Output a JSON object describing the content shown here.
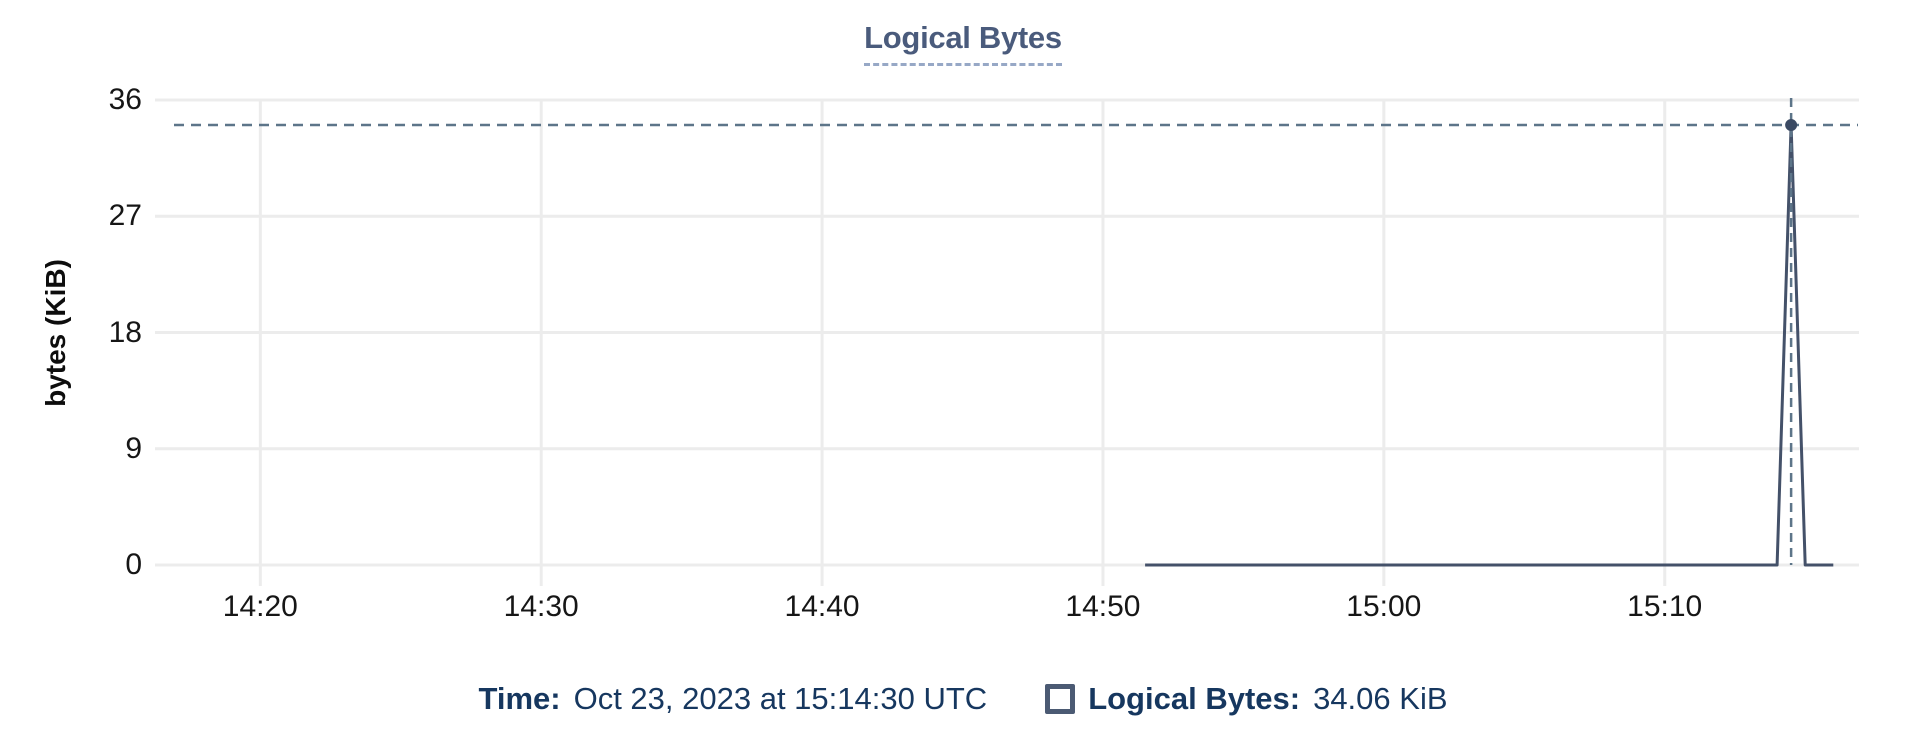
{
  "chart": {
    "title": "Logical Bytes",
    "y_axis_label": "bytes (KiB)"
  },
  "tooltip": {
    "time_label": "Time:",
    "time_value": "Oct 23, 2023 at 15:14:30 UTC",
    "series_label": "Logical Bytes:",
    "series_value": "34.06 KiB"
  },
  "colors": {
    "line": "#445169",
    "marker": "#3b4a63",
    "crosshair": "#5d7589",
    "grid": "#ececec",
    "title": "#4a5b7c",
    "title_underline": "#97a8c6",
    "tooltip_text": "#16375f",
    "tick_text": "#161616",
    "legend_border": "#4b5a73"
  },
  "chart_data": {
    "type": "line",
    "title": "Logical Bytes",
    "xlabel": "",
    "ylabel": "bytes (KiB)",
    "ylim": [
      0,
      36
    ],
    "y_ticks": [
      0,
      9,
      18,
      27,
      36
    ],
    "x_ticks": [
      "14:20",
      "14:30",
      "14:40",
      "14:50",
      "15:00",
      "15:10"
    ],
    "x_range": [
      "14:16:15",
      "15:16:55"
    ],
    "grid": true,
    "legend_position": "bottom",
    "series": [
      {
        "name": "Logical Bytes",
        "points": [
          {
            "t": "14:51:30",
            "v": 0
          },
          {
            "t": "15:14:00",
            "v": 0
          },
          {
            "t": "15:14:30",
            "v": 34.06
          },
          {
            "t": "15:15:00",
            "v": 0
          },
          {
            "t": "15:16:00",
            "v": 0
          }
        ]
      }
    ],
    "selected_point": {
      "t": "15:14:30",
      "v": 34.06,
      "value_label": "34.06 KiB",
      "date_label": "Oct 23, 2023 at 15:14:30 UTC"
    }
  }
}
